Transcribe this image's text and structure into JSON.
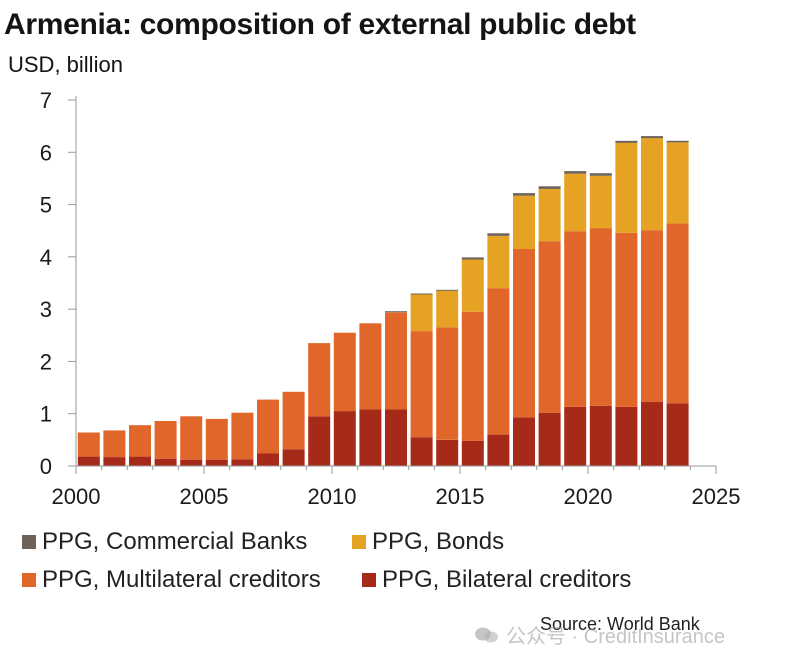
{
  "chart_data": {
    "type": "bar",
    "stacked": true,
    "title": "Armenia: composition of external public debt",
    "ylabel": "USD, billion",
    "xlabel": "",
    "ylim": [
      0,
      7
    ],
    "xlim": [
      2000,
      2025
    ],
    "yticks": [
      "0",
      "1",
      "2",
      "3",
      "4",
      "5",
      "6",
      "7"
    ],
    "xticks": [
      "2000",
      "2005",
      "2010",
      "2015",
      "2020",
      "2025"
    ],
    "years": [
      2000,
      2001,
      2002,
      2003,
      2004,
      2005,
      2006,
      2007,
      2008,
      2009,
      2010,
      2011,
      2012,
      2013,
      2014,
      2015,
      2016,
      2017,
      2018,
      2019,
      2020,
      2021,
      2022,
      2023
    ],
    "series": [
      {
        "name": "PPG, Bilateral creditors",
        "color": "#a52a1a",
        "values": [
          0.18,
          0.17,
          0.18,
          0.14,
          0.12,
          0.12,
          0.13,
          0.24,
          0.32,
          0.95,
          1.05,
          1.08,
          1.08,
          0.55,
          0.5,
          0.48,
          0.6,
          0.93,
          1.02,
          1.13,
          1.15,
          1.13,
          1.23,
          1.2
        ]
      },
      {
        "name": "PPG, Multilateral creditors",
        "color": "#e0662a",
        "values": [
          0.46,
          0.51,
          0.6,
          0.72,
          0.83,
          0.78,
          0.89,
          1.03,
          1.1,
          1.4,
          1.5,
          1.65,
          1.86,
          2.03,
          2.15,
          2.47,
          2.8,
          3.22,
          3.28,
          3.36,
          3.4,
          3.33,
          3.28,
          3.44
        ]
      },
      {
        "name": "PPG, Bonds",
        "color": "#e6a323",
        "values": [
          0,
          0,
          0,
          0,
          0,
          0,
          0,
          0,
          0,
          0,
          0,
          0,
          0,
          0.7,
          0.7,
          1.0,
          1.0,
          1.02,
          1.0,
          1.1,
          1.0,
          1.72,
          1.76,
          1.55
        ]
      },
      {
        "name": "PPG, Commercial Banks",
        "color": "#6e6259",
        "values": [
          0,
          0,
          0,
          0,
          0,
          0,
          0,
          0,
          0,
          0,
          0,
          0,
          0.02,
          0.02,
          0.02,
          0.04,
          0.05,
          0.05,
          0.05,
          0.05,
          0.05,
          0.04,
          0.04,
          0.03
        ]
      }
    ],
    "legend_position": "bottom",
    "grid": false
  },
  "legend": {
    "commercial_banks": "PPG, Commercial Banks",
    "bonds": "PPG, Bonds",
    "multilateral": "PPG, Multilateral creditors",
    "bilateral": "PPG, Bilateral creditors"
  },
  "source": "Source: World Bank",
  "watermark": "公众号 · CreditInsurance"
}
